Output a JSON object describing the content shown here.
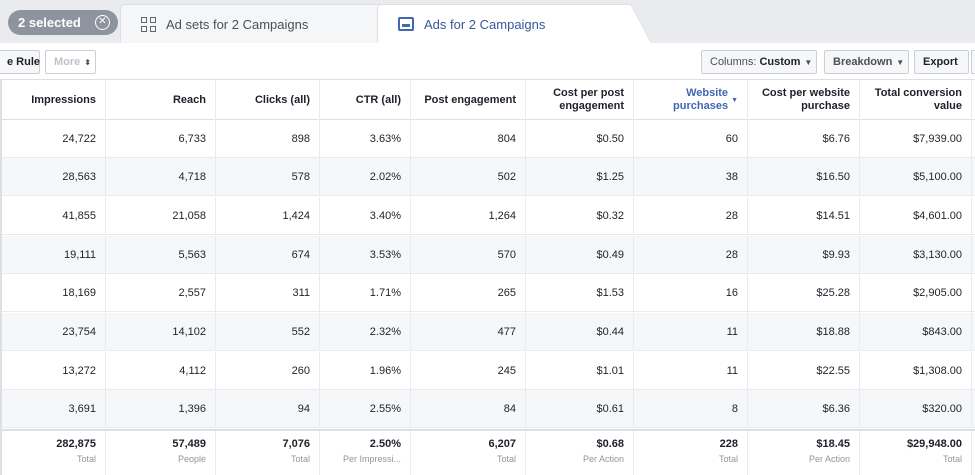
{
  "tabs": {
    "selected_label": "2 selected",
    "adsets_label": "Ad sets for 2 Campaigns",
    "ads_label": "Ads for 2 Campaigns"
  },
  "toolbar": {
    "rule_label": "e Rule",
    "more_label": "More",
    "columns_prefix": "Columns:",
    "columns_value": "Custom",
    "breakdown_label": "Breakdown",
    "export_label": "Export"
  },
  "columns": [
    {
      "line1": "Impressions",
      "line2": ""
    },
    {
      "line1": "Reach",
      "line2": ""
    },
    {
      "line1": "Clicks (all)",
      "line2": ""
    },
    {
      "line1": "CTR (all)",
      "line2": ""
    },
    {
      "line1": "Post engagement",
      "line2": ""
    },
    {
      "line1": "Cost per post",
      "line2": "engagement"
    },
    {
      "line1": "Website",
      "line2": "purchases"
    },
    {
      "line1": "Cost per website",
      "line2": "purchase"
    },
    {
      "line1": "Total conversion",
      "line2": "value"
    }
  ],
  "rows": [
    [
      "24,722",
      "6,733",
      "898",
      "3.63%",
      "804",
      "$0.50",
      "60",
      "$6.76",
      "$7,939.00"
    ],
    [
      "28,563",
      "4,718",
      "578",
      "2.02%",
      "502",
      "$1.25",
      "38",
      "$16.50",
      "$5,100.00"
    ],
    [
      "41,855",
      "21,058",
      "1,424",
      "3.40%",
      "1,264",
      "$0.32",
      "28",
      "$14.51",
      "$4,601.00"
    ],
    [
      "19,111",
      "5,563",
      "674",
      "3.53%",
      "570",
      "$0.49",
      "28",
      "$9.93",
      "$3,130.00"
    ],
    [
      "18,169",
      "2,557",
      "311",
      "1.71%",
      "265",
      "$1.53",
      "16",
      "$25.28",
      "$2,905.00"
    ],
    [
      "23,754",
      "14,102",
      "552",
      "2.32%",
      "477",
      "$0.44",
      "11",
      "$18.88",
      "$843.00"
    ],
    [
      "13,272",
      "4,112",
      "260",
      "1.96%",
      "245",
      "$1.01",
      "11",
      "$22.55",
      "$1,308.00"
    ],
    [
      "3,691",
      "1,396",
      "94",
      "2.55%",
      "84",
      "$0.61",
      "8",
      "$6.36",
      "$320.00"
    ]
  ],
  "totals": [
    {
      "value": "282,875",
      "sub": "Total"
    },
    {
      "value": "57,489",
      "sub": "People"
    },
    {
      "value": "7,076",
      "sub": "Total"
    },
    {
      "value": "2.50%",
      "sub": "Per Impressi..."
    },
    {
      "value": "6,207",
      "sub": "Total"
    },
    {
      "value": "$0.68",
      "sub": "Per Action"
    },
    {
      "value": "228",
      "sub": "Total"
    },
    {
      "value": "$18.45",
      "sub": "Per Action"
    },
    {
      "value": "$29,948.00",
      "sub": "Total"
    }
  ],
  "colors": {
    "accent": "#4267b2",
    "row_alt": "#f6f7f9",
    "pill": "#8d949e"
  }
}
